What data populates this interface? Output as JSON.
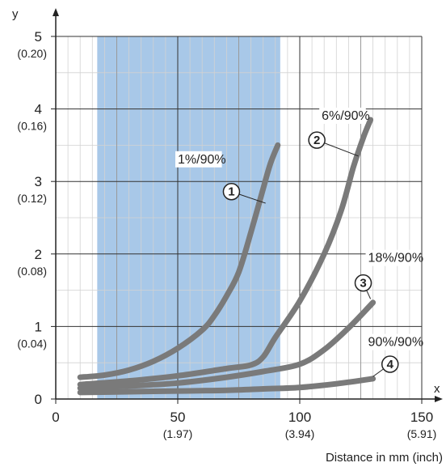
{
  "chart_data": {
    "type": "line",
    "xlabel": "Distance in mm (inch)",
    "x_axis_letter": "x",
    "y_axis_letter": "y",
    "xlim": [
      0,
      150
    ],
    "ylim": [
      0,
      5
    ],
    "grid": true,
    "highlight_band": {
      "x_range": [
        17,
        92
      ],
      "color": "#a8c8e8"
    },
    "x_ticks": [
      {
        "value": 0,
        "label": "0",
        "sub": ""
      },
      {
        "value": 50,
        "label": "50",
        "sub": "(1.97)"
      },
      {
        "value": 100,
        "label": "100",
        "sub": "(3.94)"
      },
      {
        "value": 150,
        "label": "150",
        "sub": "(5.91)"
      }
    ],
    "y_ticks": [
      {
        "value": 0,
        "label": "0",
        "sub": ""
      },
      {
        "value": 1,
        "label": "1",
        "sub": "(0.04)"
      },
      {
        "value": 2,
        "label": "2",
        "sub": "(0.08)"
      },
      {
        "value": 3,
        "label": "3",
        "sub": "(0.12)"
      },
      {
        "value": 4,
        "label": "4",
        "sub": "(0.16)"
      },
      {
        "value": 5,
        "label": "5",
        "sub": "(0.20)"
      }
    ],
    "series_color": "#7a7a7a",
    "series": [
      {
        "label": "1%/90%",
        "marker": "1",
        "x": [
          10,
          20,
          30,
          40,
          50,
          60,
          65,
          70,
          75,
          80,
          85,
          88,
          91
        ],
        "y": [
          0.3,
          0.33,
          0.4,
          0.52,
          0.7,
          0.95,
          1.15,
          1.42,
          1.75,
          2.3,
          2.9,
          3.25,
          3.5
        ],
        "label_pos": [
          50,
          3.25
        ],
        "marker_pos": [
          72,
          2.86
        ],
        "leader_end": [
          86,
          2.7
        ]
      },
      {
        "label": "6%/90%",
        "marker": "2",
        "x": [
          10,
          30,
          50,
          70,
          80,
          85,
          90,
          100,
          110,
          117,
          122,
          126,
          129
        ],
        "y": [
          0.2,
          0.25,
          0.32,
          0.42,
          0.47,
          0.58,
          0.85,
          1.35,
          2.0,
          2.6,
          3.2,
          3.6,
          3.85
        ],
        "label_pos": [
          109,
          3.85
        ],
        "marker_pos": [
          107,
          3.57
        ],
        "leader_end": [
          124,
          3.35
        ]
      },
      {
        "label": "18%/90%",
        "marker": "3",
        "x": [
          10,
          30,
          50,
          70,
          85,
          100,
          110,
          120,
          130
        ],
        "y": [
          0.15,
          0.18,
          0.22,
          0.3,
          0.38,
          0.48,
          0.68,
          0.98,
          1.33
        ],
        "label_pos": [
          128,
          1.89
        ],
        "marker_pos": [
          126,
          1.6
        ],
        "leader_end": [
          129,
          1.38
        ]
      },
      {
        "label": "90%/90%",
        "marker": "4",
        "x": [
          10,
          30,
          50,
          70,
          85,
          100,
          115,
          130
        ],
        "y": [
          0.09,
          0.1,
          0.11,
          0.12,
          0.14,
          0.16,
          0.21,
          0.28
        ],
        "label_pos": [
          128,
          0.73
        ],
        "marker_pos": [
          137,
          0.48
        ],
        "leader_end": [
          130,
          0.31
        ]
      }
    ]
  }
}
